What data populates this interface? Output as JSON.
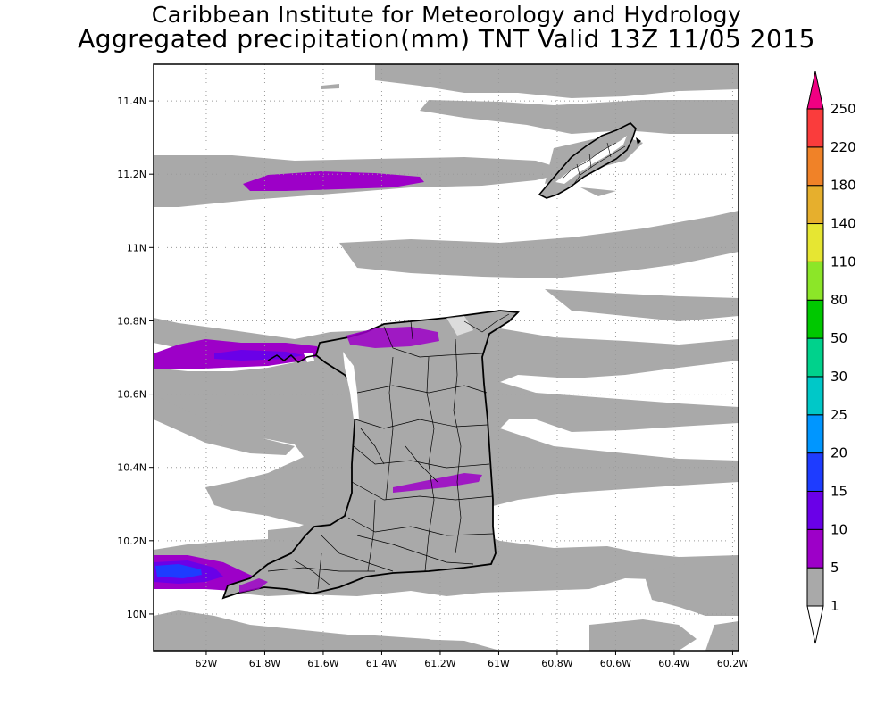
{
  "header": {
    "title_line1": "Caribbean Institute for Meteorology and Hydrology",
    "title_line2": "Aggregated precipitation(mm) TNT Valid 13Z 11/05 2015"
  },
  "map": {
    "lon_ticks": [
      "62W",
      "61.8W",
      "61.6W",
      "61.4W",
      "61.2W",
      "61W",
      "60.8W",
      "60.6W",
      "60.4W",
      "60.2W"
    ],
    "lat_ticks": [
      "10N",
      "10.2N",
      "10.4N",
      "10.6N",
      "10.8N",
      "11N",
      "11.2N",
      "11.4N"
    ],
    "lon_range": [
      -62.18,
      -60.18
    ],
    "lat_range": [
      9.9,
      11.5
    ],
    "lon_tick_values": [
      -62.0,
      -61.8,
      -61.6,
      -61.4,
      -61.2,
      -61.0,
      -60.8,
      -60.6,
      -60.4,
      -60.2
    ],
    "lat_tick_values": [
      10.0,
      10.2,
      10.4,
      10.6,
      10.8,
      11.0,
      11.2,
      11.4
    ],
    "grid": true,
    "grid_style": "dotted"
  },
  "colorbar": {
    "labels": [
      "1",
      "5",
      "10",
      "15",
      "20",
      "25",
      "30",
      "50",
      "80",
      "110",
      "140",
      "180",
      "220",
      "250"
    ],
    "colors": [
      "#ffffff",
      "#a9a9a9",
      "#9d00c8",
      "#6a00e8",
      "#1e3cff",
      "#0096ff",
      "#00c8c8",
      "#00d28c",
      "#00c800",
      "#8ce628",
      "#e6e632",
      "#e6af2d",
      "#f08228",
      "#fa3c3c",
      "#f00082"
    ]
  },
  "legend_colors": {
    "gray": "#a9a9a9",
    "purple": "#9d00c8",
    "violet": "#6a00e8",
    "blue": "#1e3cff"
  }
}
